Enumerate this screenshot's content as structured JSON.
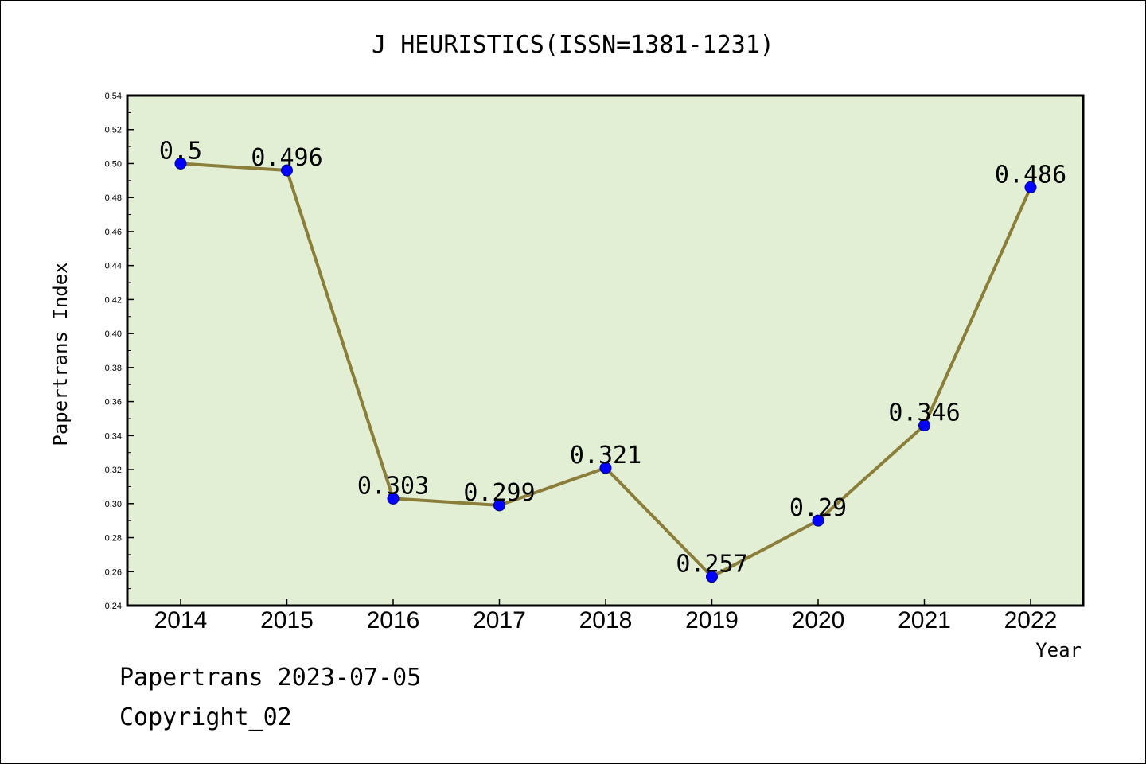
{
  "chart_data": {
    "type": "line",
    "title": "J HEURISTICS(ISSN=1381-1231)",
    "xlabel": "Year",
    "ylabel": "Papertrans Index",
    "categories": [
      "2014",
      "2015",
      "2016",
      "2017",
      "2018",
      "2019",
      "2020",
      "2021",
      "2022"
    ],
    "values": [
      0.5,
      0.496,
      0.303,
      0.299,
      0.321,
      0.257,
      0.29,
      0.346,
      0.486
    ],
    "data_labels": [
      "0.5",
      "0.496",
      "0.303",
      "0.299",
      "0.321",
      "0.257",
      "0.29",
      "0.346",
      "0.486"
    ],
    "ylim": [
      0.24,
      0.54
    ],
    "yticks": [
      "0.24",
      "0.26",
      "0.28",
      "0.30",
      "0.32",
      "0.34",
      "0.36",
      "0.38",
      "0.40",
      "0.42",
      "0.44",
      "0.46",
      "0.48",
      "0.50",
      "0.52",
      "0.54"
    ],
    "grid": false,
    "colors": {
      "line": "#8b7d3a",
      "marker": "#0000ff",
      "plot_background": "#e2efd4"
    }
  },
  "footer": {
    "line1": "Papertrans 2023-07-05",
    "line2": "Copyright_02"
  }
}
